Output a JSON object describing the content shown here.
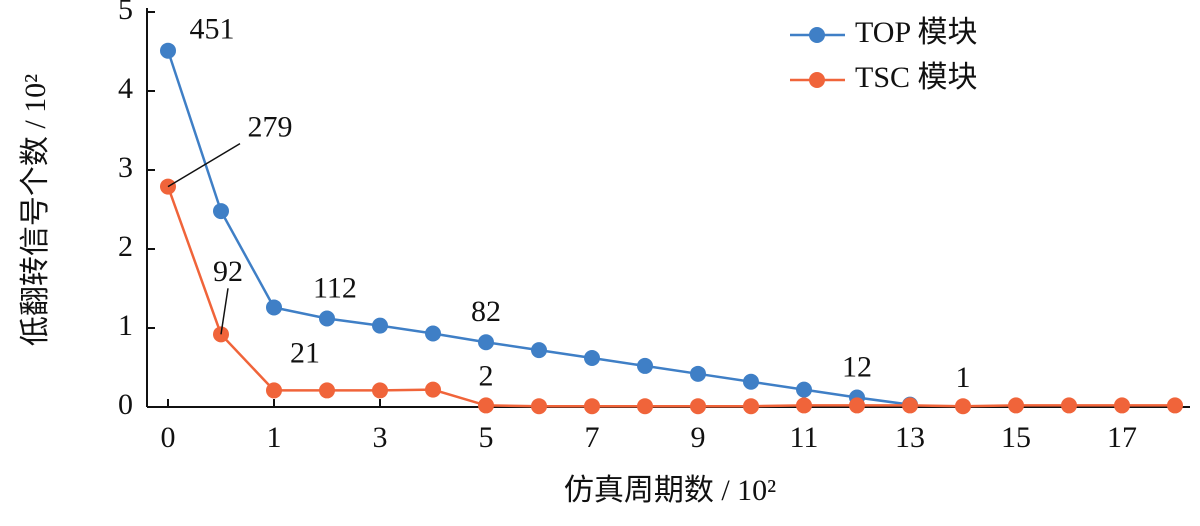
{
  "chart_data": {
    "type": "line",
    "x_label": "仿真周期数 / 10²",
    "y_label": "低翻转信号个数 / 10²",
    "categories": [
      "0",
      null,
      "1",
      null,
      "3",
      null,
      "5",
      null,
      "7",
      null,
      "9",
      null,
      "11",
      null,
      "13",
      null,
      "15",
      null,
      "17",
      null
    ],
    "ylim": [
      0,
      5
    ],
    "yticks": [
      0,
      1,
      2,
      3,
      4,
      5
    ],
    "legend": "top-right",
    "series": [
      {
        "name": "TOP 模块",
        "color": "#3f7fc6",
        "values": [
          4.51,
          2.48,
          1.26,
          1.12,
          1.03,
          0.93,
          0.82,
          0.72,
          0.62,
          0.52,
          0.42,
          0.32,
          0.22,
          0.12,
          0.03,
          null,
          null,
          null,
          null,
          null
        ],
        "value_labels": [
          "451",
          null,
          null,
          "112",
          null,
          null,
          "82",
          null,
          null,
          null,
          null,
          null,
          null,
          "12",
          null,
          null,
          null,
          null,
          null,
          null
        ]
      },
      {
        "name": "TSC 模块",
        "color": "#f0643a",
        "values": [
          2.79,
          0.92,
          0.21,
          0.21,
          0.21,
          0.22,
          0.02,
          0.01,
          0.01,
          0.01,
          0.01,
          0.01,
          0.02,
          0.02,
          0.02,
          0.01,
          0.02,
          0.02,
          0.02,
          0.02
        ],
        "value_labels": [
          "279",
          "92",
          "21",
          null,
          null,
          null,
          "2",
          null,
          null,
          null,
          null,
          null,
          null,
          null,
          null,
          "1",
          null,
          null,
          null,
          null
        ]
      }
    ]
  }
}
